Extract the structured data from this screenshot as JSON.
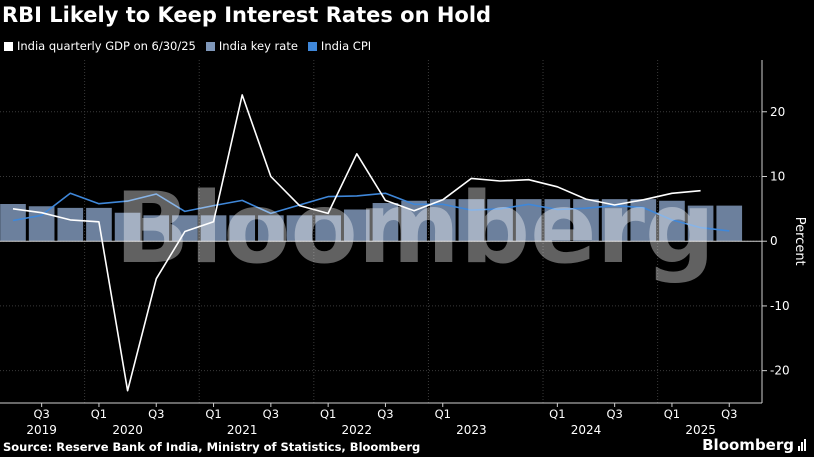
{
  "title": "RBI Likely to Keep Interest Rates on Hold",
  "source": "Source: Reserve Bank of India, Ministry of Statistics, Bloomberg",
  "brand": "Bloomberg",
  "watermark": "Bloomberg",
  "colors": {
    "background": "#000000",
    "gdp": "#ffffff",
    "key_rate": "#7f97b9",
    "cpi": "#3f87d9",
    "grid": "#3a3a3a"
  },
  "chart_data": {
    "type": "line",
    "title": "RBI Likely to Keep Interest Rates on Hold",
    "ylabel": "Percent",
    "xlabel": "",
    "ylim": [
      -25,
      28
    ],
    "y_ticks": [
      20,
      10,
      0,
      -10,
      -20
    ],
    "x_tick_quarters": [
      "Q3",
      "Q1",
      "Q3",
      "Q1",
      "Q3",
      "Q1",
      "Q3",
      "Q1",
      "Q1",
      "Q3",
      "Q1",
      "Q3"
    ],
    "x_tick_positions": [
      "2019Q3",
      "2020Q1",
      "2020Q3",
      "2021Q1",
      "2021Q3",
      "2022Q1",
      "2022Q3",
      "2023Q1",
      "2024Q1",
      "2024Q3",
      "2025Q1",
      "2025Q3"
    ],
    "year_labels": [
      {
        "label": "2019",
        "center": "2019Q3"
      },
      {
        "label": "2020",
        "center": "2020Q2"
      },
      {
        "label": "2021",
        "center": "2021Q2"
      },
      {
        "label": "2022",
        "center": "2022Q2"
      },
      {
        "label": "2023",
        "center": "2023Q2"
      },
      {
        "label": "2024",
        "center": "2024Q2"
      },
      {
        "label": "2025",
        "center": "2025Q2"
      }
    ],
    "grid": true,
    "legend_placement": "top-left",
    "series": [
      {
        "name": "India quarterly GDP on 6/30/25",
        "style": "line",
        "points": [
          [
            "2019Q2",
            5.0
          ],
          [
            "2019Q3",
            4.4
          ],
          [
            "2019Q4",
            3.3
          ],
          [
            "2020Q1",
            3.0
          ],
          [
            "2020Q2",
            -23.1
          ],
          [
            "2020Q3",
            -5.8
          ],
          [
            "2020Q4",
            1.5
          ],
          [
            "2021Q1",
            3.0
          ],
          [
            "2021Q2",
            22.6
          ],
          [
            "2021Q3",
            10.0
          ],
          [
            "2021Q4",
            5.5
          ],
          [
            "2022Q1",
            4.3
          ],
          [
            "2022Q2",
            13.5
          ],
          [
            "2022Q3",
            6.3
          ],
          [
            "2022Q4",
            4.7
          ],
          [
            "2023Q1",
            6.4
          ],
          [
            "2023Q2",
            9.7
          ],
          [
            "2023Q3",
            9.3
          ],
          [
            "2023Q4",
            9.5
          ],
          [
            "2024Q1",
            8.4
          ],
          [
            "2024Q2",
            6.5
          ],
          [
            "2024Q3",
            5.6
          ],
          [
            "2024Q4",
            6.4
          ],
          [
            "2025Q1",
            7.4
          ],
          [
            "2025Q2",
            7.8
          ]
        ]
      },
      {
        "name": "India key rate",
        "style": "bar",
        "points": [
          [
            "2019Q2",
            5.75
          ],
          [
            "2019Q3",
            5.4
          ],
          [
            "2019Q4",
            5.15
          ],
          [
            "2020Q1",
            5.15
          ],
          [
            "2020Q2",
            4.4
          ],
          [
            "2020Q3",
            4.0
          ],
          [
            "2020Q4",
            4.0
          ],
          [
            "2021Q1",
            4.0
          ],
          [
            "2021Q2",
            4.0
          ],
          [
            "2021Q3",
            4.0
          ],
          [
            "2021Q4",
            4.0
          ],
          [
            "2022Q1",
            4.0
          ],
          [
            "2022Q2",
            4.9
          ],
          [
            "2022Q3",
            5.9
          ],
          [
            "2022Q4",
            6.25
          ],
          [
            "2023Q1",
            6.5
          ],
          [
            "2023Q2",
            6.5
          ],
          [
            "2023Q3",
            6.5
          ],
          [
            "2023Q4",
            6.5
          ],
          [
            "2024Q1",
            6.5
          ],
          [
            "2024Q2",
            6.5
          ],
          [
            "2024Q3",
            6.5
          ],
          [
            "2024Q4",
            6.5
          ],
          [
            "2025Q1",
            6.25
          ],
          [
            "2025Q2",
            5.5
          ],
          [
            "2025Q3",
            5.5
          ]
        ]
      },
      {
        "name": "India CPI",
        "style": "line",
        "points": [
          [
            "2019Q2",
            3.2
          ],
          [
            "2019Q3",
            4.0
          ],
          [
            "2019Q4",
            7.4
          ],
          [
            "2020Q1",
            5.8
          ],
          [
            "2020Q2",
            6.2
          ],
          [
            "2020Q3",
            7.3
          ],
          [
            "2020Q4",
            4.6
          ],
          [
            "2021Q1",
            5.5
          ],
          [
            "2021Q2",
            6.3
          ],
          [
            "2021Q3",
            4.3
          ],
          [
            "2021Q4",
            5.6
          ],
          [
            "2022Q1",
            6.9
          ],
          [
            "2022Q2",
            7.0
          ],
          [
            "2022Q3",
            7.4
          ],
          [
            "2022Q4",
            5.7
          ],
          [
            "2023Q1",
            5.7
          ],
          [
            "2023Q2",
            4.8
          ],
          [
            "2023Q3",
            5.0
          ],
          [
            "2023Q4",
            5.7
          ],
          [
            "2024Q1",
            4.9
          ],
          [
            "2024Q2",
            5.1
          ],
          [
            "2024Q3",
            5.5
          ],
          [
            "2024Q4",
            5.2
          ],
          [
            "2025Q1",
            3.3
          ],
          [
            "2025Q2",
            2.1
          ],
          [
            "2025Q3",
            1.6
          ]
        ]
      }
    ]
  }
}
